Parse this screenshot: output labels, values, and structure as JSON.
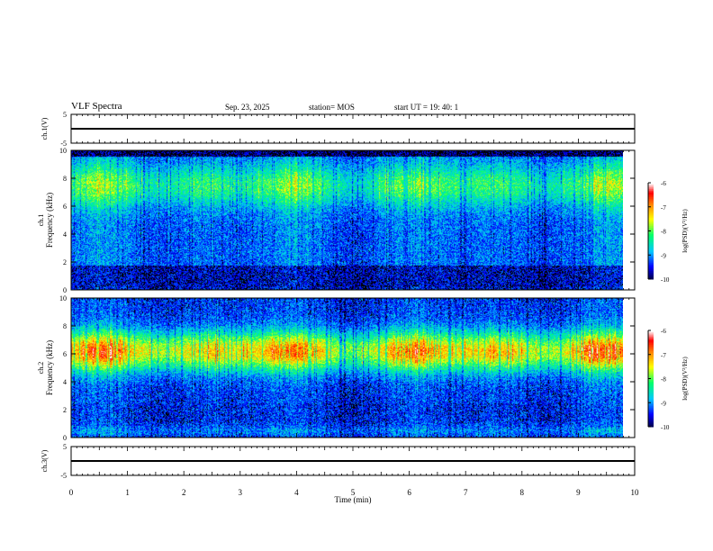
{
  "header": {
    "title": "VLF Spectra",
    "date": "Sep. 23, 2025",
    "station": "station= MOS",
    "start_ut": "start UT =   19: 40: 1"
  },
  "chart_data": [
    {
      "type": "line",
      "panel": "ch1-waveform",
      "ylabel": "ch.1(V)",
      "ylim": [
        -5,
        5
      ],
      "yticks": [
        "5",
        "-5"
      ],
      "x": [
        0,
        10
      ],
      "values": [
        0,
        0
      ],
      "xlim": [
        0,
        10
      ]
    },
    {
      "type": "heatmap",
      "panel": "ch1-spectrogram",
      "ylabel": "ch.1 Frequency (kHz)",
      "ylim": [
        0,
        10
      ],
      "yticks": [
        "0",
        "2",
        "4",
        "6",
        "8",
        "10"
      ],
      "xlim": [
        0,
        10
      ],
      "x_end_min": 9.8,
      "colorbar": {
        "label": "log(PSD)(V²/Hz)",
        "range": [
          -10,
          -6
        ],
        "ticks": [
          "-6",
          "-7",
          "-8",
          "-9",
          "-10"
        ]
      }
    },
    {
      "type": "heatmap",
      "panel": "ch2-spectrogram",
      "ylabel": "ch.2 Frequency (kHz)",
      "ylim": [
        0,
        10
      ],
      "yticks": [
        "0",
        "2",
        "4",
        "6",
        "8",
        "10"
      ],
      "xlim": [
        0,
        10
      ],
      "x_end_min": 9.8,
      "colorbar": {
        "label": "log(PSD)(V²/Hz)",
        "range": [
          -10,
          -6
        ],
        "ticks": [
          "-6",
          "-7",
          "-8",
          "-9",
          "-10"
        ]
      }
    },
    {
      "type": "line",
      "panel": "ch3-waveform",
      "ylabel": "ch.3(V)",
      "ylim": [
        -5,
        5
      ],
      "yticks": [
        "5",
        "-5"
      ],
      "x": [
        0,
        10
      ],
      "values": [
        0,
        0
      ],
      "xlim": [
        0,
        10
      ]
    }
  ],
  "xaxis": {
    "label": "Time (min)",
    "ticks": [
      "0",
      "1",
      "2",
      "3",
      "4",
      "5",
      "6",
      "7",
      "8",
      "9",
      "10"
    ]
  },
  "colors": {
    "colormap": [
      "#000080",
      "#0000ff",
      "#00c8ff",
      "#00ff80",
      "#ffff00",
      "#ff8000",
      "#ff0000",
      "#ffffff"
    ]
  }
}
